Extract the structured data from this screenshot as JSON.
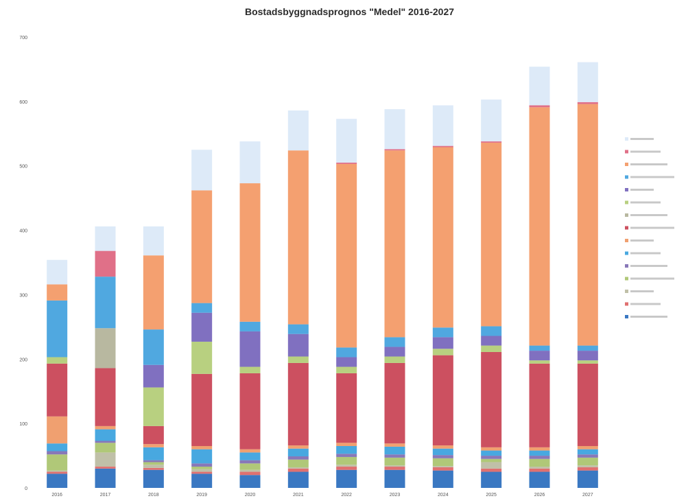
{
  "chart_data": {
    "type": "bar",
    "stacked": true,
    "title": "Bostadsbyggnadsprognos \"Medel\" 2016-2027",
    "xlabel": "",
    "ylabel": "",
    "ylim": [
      0,
      700
    ],
    "yticks": [
      0,
      100,
      200,
      300,
      400,
      500,
      600,
      700
    ],
    "grid": false,
    "legend_position": "right",
    "categories": [
      "2016",
      "2017",
      "2018",
      "2019",
      "2020",
      "2021",
      "2022",
      "2023",
      "2024",
      "2025",
      "2026",
      "2027"
    ],
    "series": [
      {
        "color": "#3a78c2",
        "values": [
          22,
          30,
          28,
          22,
          20,
          25,
          28,
          28,
          27,
          25,
          25,
          27
        ]
      },
      {
        "color": "#e07070",
        "values": [
          3,
          3,
          3,
          3,
          5,
          5,
          5,
          5,
          5,
          5,
          5,
          5
        ]
      },
      {
        "color": "#c0c0a8",
        "values": [
          2,
          22,
          5,
          4,
          3,
          2,
          3,
          2,
          2,
          10,
          3,
          3
        ]
      },
      {
        "color": "#b0c878",
        "values": [
          25,
          15,
          4,
          4,
          10,
          12,
          12,
          12,
          12,
          5,
          12,
          12
        ]
      },
      {
        "color": "#8878b8",
        "values": [
          5,
          3,
          3,
          5,
          5,
          5,
          5,
          5,
          5,
          5,
          5,
          5
        ]
      },
      {
        "color": "#48a8e0",
        "values": [
          12,
          18,
          20,
          22,
          12,
          12,
          12,
          12,
          10,
          8,
          8,
          8
        ]
      },
      {
        "color": "#f0a070",
        "values": [
          42,
          5,
          5,
          5,
          5,
          5,
          5,
          5,
          5,
          5,
          5,
          5
        ]
      },
      {
        "color": "#cc5060",
        "values": [
          82,
          90,
          28,
          112,
          118,
          128,
          108,
          125,
          140,
          148,
          130,
          128
        ]
      },
      {
        "color": "#b8b8a0",
        "values": [
          0,
          62,
          0,
          0,
          0,
          0,
          0,
          0,
          0,
          0,
          0,
          0
        ]
      },
      {
        "color": "#b8d080",
        "values": [
          10,
          0,
          60,
          50,
          10,
          10,
          10,
          10,
          10,
          10,
          5,
          5
        ]
      },
      {
        "color": "#8070c0",
        "values": [
          0,
          0,
          35,
          45,
          55,
          35,
          15,
          15,
          18,
          15,
          15,
          15
        ]
      },
      {
        "color": "#50a8e0",
        "values": [
          88,
          80,
          55,
          15,
          15,
          15,
          15,
          15,
          15,
          15,
          8,
          8
        ]
      },
      {
        "color": "#f4a070",
        "values": [
          25,
          0,
          115,
          175,
          215,
          270,
          285,
          290,
          280,
          285,
          370,
          375
        ]
      },
      {
        "color": "#e07088",
        "values": [
          0,
          40,
          0,
          0,
          0,
          0,
          2,
          2,
          2,
          2,
          3,
          3
        ]
      },
      {
        "color": "#ddeaf8",
        "values": [
          38,
          38,
          45,
          63,
          65,
          62,
          68,
          62,
          63,
          65,
          60,
          62
        ]
      }
    ]
  }
}
